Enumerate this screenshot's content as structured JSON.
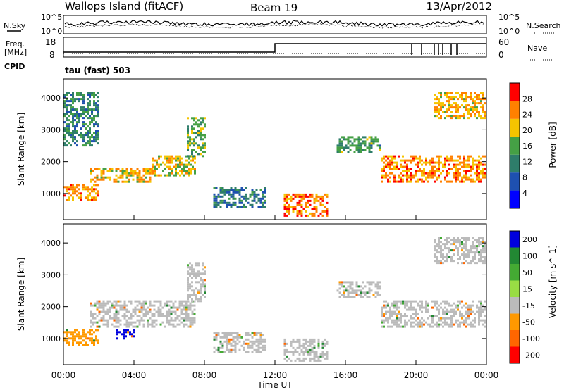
{
  "header": {
    "title": "Wallops Island (fitACF)",
    "beam": "Beam 19",
    "date": "13/Apr/2012"
  },
  "panels": {
    "noise": {
      "left_label": "N.Sky",
      "right_label": "N.Search",
      "left_ticks": [
        "10^5",
        "10^0"
      ],
      "right_ticks": [
        "10^5",
        "10^0"
      ]
    },
    "freq": {
      "left_label_line1": "Freq.",
      "left_label_line2": "[MHz]",
      "right_label": "Nave",
      "left_ticks": [
        "18",
        "8"
      ],
      "right_ticks": [
        "60",
        "0"
      ]
    },
    "cpid": {
      "label": "CPID",
      "value": "tau (fast) 503"
    }
  },
  "chart_data": [
    {
      "type": "heatmap",
      "title": "",
      "xlabel": "Time UT",
      "ylabel": "Slant Range [km]",
      "x_ticks": [
        "00:00",
        "04:00",
        "08:00",
        "12:00",
        "16:00",
        "20:00",
        "00:00"
      ],
      "xlim_hours": [
        0,
        24
      ],
      "y_ticks": [
        1000,
        2000,
        3000,
        4000
      ],
      "ylim": [
        180,
        4600
      ],
      "colorbar": {
        "label": "Power [dB]",
        "ticks": [
          4,
          8,
          12,
          16,
          20,
          24,
          28
        ],
        "range": [
          0,
          32
        ],
        "colors": [
          "#0000ff",
          "#1e50b0",
          "#2e7d6a",
          "#45a045",
          "#f5c400",
          "#ff8000",
          "#ff0000"
        ]
      },
      "echo_regions": [
        {
          "t_start": 0.0,
          "t_end": 2.0,
          "range_start": 800,
          "range_end": 1300,
          "value": 24
        },
        {
          "t_start": 1.5,
          "t_end": 5.0,
          "range_start": 1400,
          "range_end": 1800,
          "value": 22
        },
        {
          "t_start": 5.0,
          "t_end": 7.5,
          "range_start": 1600,
          "range_end": 2200,
          "value": 20
        },
        {
          "t_start": 7.0,
          "t_end": 8.0,
          "range_start": 2200,
          "range_end": 3400,
          "value": 16
        },
        {
          "t_start": 8.5,
          "t_end": 11.5,
          "range_start": 600,
          "range_end": 1200,
          "value": 10
        },
        {
          "t_start": 12.5,
          "t_end": 15.0,
          "range_start": 300,
          "range_end": 1000,
          "value": 26
        },
        {
          "t_start": 15.5,
          "t_end": 18.0,
          "range_start": 2300,
          "range_end": 2800,
          "value": 14
        },
        {
          "t_start": 18.0,
          "t_end": 24.0,
          "range_start": 1400,
          "range_end": 2200,
          "value": 24
        },
        {
          "t_start": 21.0,
          "t_end": 24.0,
          "range_start": 3400,
          "range_end": 4200,
          "value": 22
        },
        {
          "t_start": 0.0,
          "t_end": 2.0,
          "range_start": 2500,
          "range_end": 4200,
          "value": 12
        }
      ]
    },
    {
      "type": "heatmap",
      "title": "",
      "xlabel": "Time UT",
      "ylabel": "Slant Range [km]",
      "x_ticks": [
        "00:00",
        "04:00",
        "08:00",
        "12:00",
        "16:00",
        "20:00",
        "00:00"
      ],
      "xlim_hours": [
        0,
        24
      ],
      "y_ticks": [
        1000,
        2000,
        3000,
        4000
      ],
      "ylim": [
        180,
        4600
      ],
      "colorbar": {
        "label": "Velocity [m s^-1]",
        "ticks": [
          200,
          100,
          50,
          15,
          -15,
          -50,
          -100,
          -200
        ],
        "colors": [
          "#0000dd",
          "#228833",
          "#44aa33",
          "#99dd44",
          "#bbbbbb",
          "#ff9900",
          "#ff6600",
          "#ff0000"
        ]
      },
      "echo_regions": [
        {
          "t_start": 0.0,
          "t_end": 2.0,
          "range_start": 800,
          "range_end": 1300,
          "value": -50
        },
        {
          "t_start": 1.5,
          "t_end": 7.5,
          "range_start": 1400,
          "range_end": 2200,
          "value": 0
        },
        {
          "t_start": 3.0,
          "t_end": 4.0,
          "range_start": 1000,
          "range_end": 1300,
          "value": 200
        },
        {
          "t_start": 7.0,
          "t_end": 8.0,
          "range_start": 2200,
          "range_end": 3400,
          "value": 0
        },
        {
          "t_start": 8.5,
          "t_end": 11.5,
          "range_start": 600,
          "range_end": 1200,
          "value": 0
        },
        {
          "t_start": 12.5,
          "t_end": 15.0,
          "range_start": 300,
          "range_end": 1000,
          "value": 0
        },
        {
          "t_start": 15.5,
          "t_end": 18.0,
          "range_start": 2300,
          "range_end": 2800,
          "value": 0
        },
        {
          "t_start": 18.0,
          "t_end": 24.0,
          "range_start": 1400,
          "range_end": 2200,
          "value": 0
        },
        {
          "t_start": 21.0,
          "t_end": 24.0,
          "range_start": 3400,
          "range_end": 4200,
          "value": 0
        }
      ]
    }
  ]
}
